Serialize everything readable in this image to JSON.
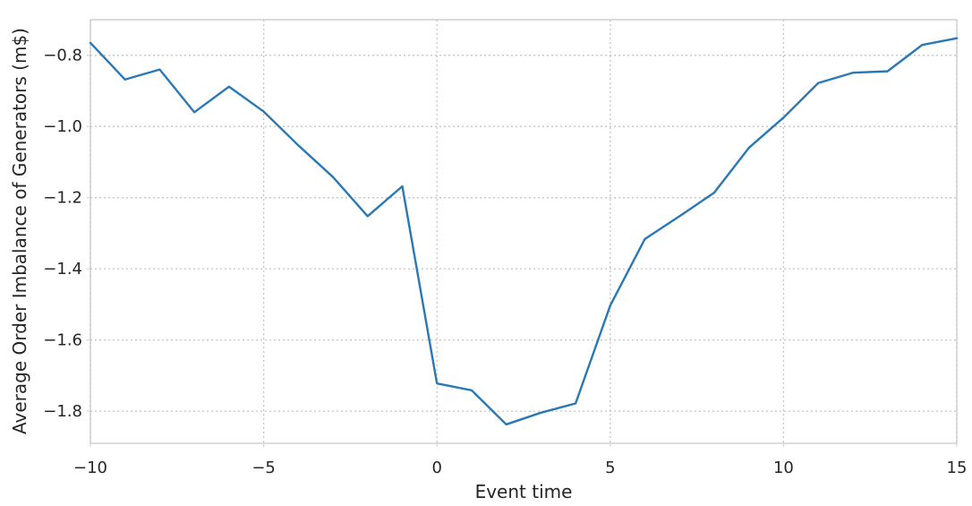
{
  "chart_data": {
    "type": "line",
    "title": "",
    "xlabel": "Event time",
    "ylabel": "Average Order Imbalance of Generators (m$)",
    "xlim": [
      -10,
      15
    ],
    "ylim": [
      -1.89,
      -0.7
    ],
    "xticks": [
      -10,
      -5,
      0,
      5,
      10,
      15
    ],
    "xtick_labels": [
      "−10",
      "−5",
      "0",
      "5",
      "10",
      "15"
    ],
    "yticks": [
      -1.8,
      -1.6,
      -1.4,
      -1.2,
      -1.0,
      -0.8
    ],
    "ytick_labels": [
      "−1.8",
      "−1.6",
      "−1.4",
      "−1.2",
      "−1.0",
      "−0.8"
    ],
    "grid": true,
    "line_color": "#2a78b4",
    "series": [
      {
        "x": [
          -10,
          -9,
          -8,
          -7,
          -6,
          -5,
          -4,
          -3,
          -2,
          -1,
          0,
          1,
          2,
          3,
          4,
          5,
          6,
          7,
          8,
          9,
          10,
          11,
          12,
          13,
          14,
          15
        ],
        "values": [
          -0.765,
          -0.868,
          -0.84,
          -0.96,
          -0.888,
          -0.958,
          -1.053,
          -1.142,
          -1.252,
          -1.168,
          -1.722,
          -1.741,
          -1.837,
          -1.804,
          -1.778,
          -1.503,
          -1.316,
          -1.252,
          -1.186,
          -1.06,
          -0.975,
          -0.878,
          -0.849,
          -0.845,
          -0.771,
          -0.752
        ]
      }
    ]
  }
}
